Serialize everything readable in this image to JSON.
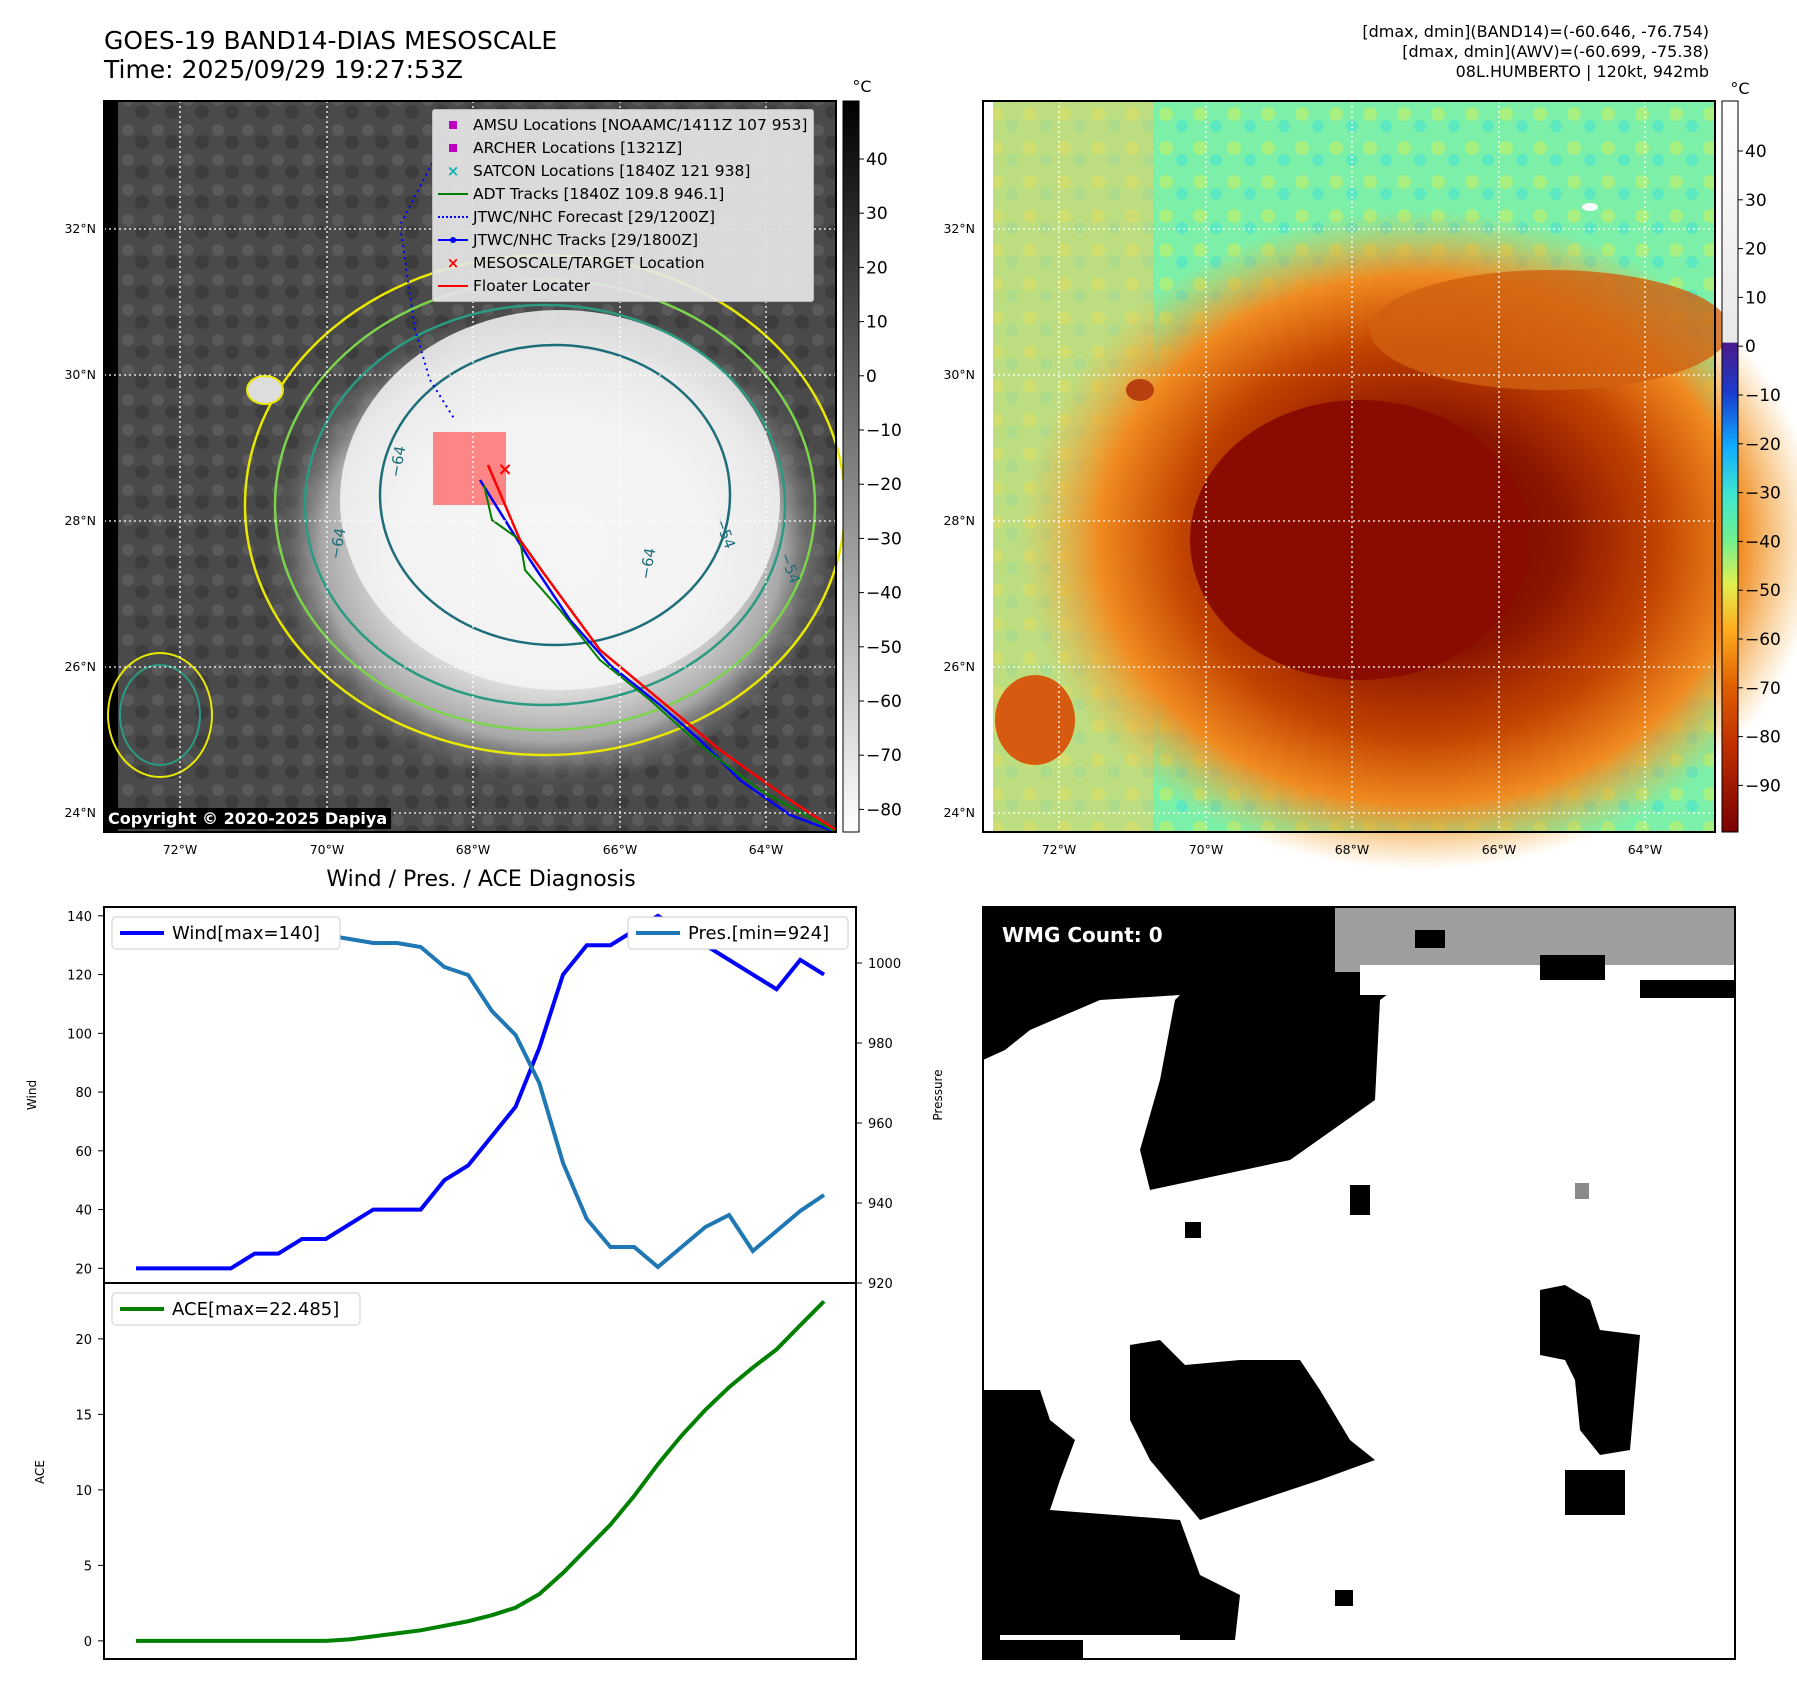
{
  "header": {
    "title_line1": "GOES-19 BAND14-DIAS MESOSCALE",
    "title_line2": "Time: 2025/09/29 19:27:53Z",
    "info_line1": "[dmax, dmin](BAND14)=(-60.646, -76.754)",
    "info_line2": "[dmax, dmin](AWV)=(-60.699, -75.38)",
    "info_line3": "08L.HUMBERTO | 120kt, 942mb"
  },
  "map_axes": {
    "lat_ticks": [
      "32°N",
      "30°N",
      "28°N",
      "26°N",
      "24°N"
    ],
    "lon_ticks": [
      "72°W",
      "70°W",
      "68°W",
      "66°W",
      "64°W"
    ]
  },
  "ir_panel": {
    "colorbar_unit": "°C",
    "colorbar_ticks": [
      "40",
      "30",
      "20",
      "10",
      "0",
      "−10",
      "−20",
      "−30",
      "−40",
      "−50",
      "−60",
      "−70",
      "−80"
    ],
    "contour_labels": [
      "−64",
      "−64",
      "−54",
      "−64",
      "−64",
      "−54"
    ],
    "copyright": "Copyright © 2020-2025 Dapiya",
    "legend": [
      {
        "label": "AMSU Locations [NOAAMC/1411Z 107 953]",
        "symbol": "square",
        "color": "#c000c0"
      },
      {
        "label": "ARCHER Locations [1321Z]",
        "symbol": "square",
        "color": "#c000c0"
      },
      {
        "label": "SATCON Locations [1840Z 121 938]",
        "symbol": "x",
        "color": "#10b0b0"
      },
      {
        "label": "ADT Tracks [1840Z 109.8 946.1]",
        "symbol": "line",
        "color": "#008000"
      },
      {
        "label": "JTWC/NHC Forecast [29/1200Z]",
        "symbol": "dotted",
        "color": "#0000ff"
      },
      {
        "label": "JTWC/NHC Tracks [29/1800Z]",
        "symbol": "line-dot",
        "color": "#0000ff"
      },
      {
        "label": "MESOSCALE/TARGET Location",
        "symbol": "x",
        "color": "#ff0000"
      },
      {
        "label": "Floater Locater",
        "symbol": "line",
        "color": "#ff0000"
      }
    ]
  },
  "color_panel": {
    "colorbar_unit": "°C",
    "colorbar_ticks": [
      "40",
      "30",
      "20",
      "10",
      "0",
      "−10",
      "−20",
      "−30",
      "−40",
      "−50",
      "−60",
      "−70",
      "−80",
      "−90"
    ]
  },
  "wmg_panel": {
    "label": "WMG Count: 0"
  },
  "chart_data": [
    {
      "type": "line",
      "title": "Wind / Pres. / ACE Diagnosis",
      "ylabel": "Wind",
      "y2label": "Pressure",
      "ylim": [
        15,
        143
      ],
      "y2lim": [
        920,
        1014
      ],
      "yticks": [
        20,
        40,
        60,
        80,
        100,
        120,
        140
      ],
      "y2ticks": [
        920,
        940,
        960,
        980,
        1000
      ],
      "legend_placement": "top-left / top-right",
      "series": [
        {
          "name": "Wind[max=140]",
          "color": "#0000ff",
          "axis": "left",
          "values": [
            20,
            20,
            20,
            20,
            20,
            25,
            25,
            30,
            30,
            35,
            40,
            40,
            40,
            50,
            55,
            65,
            75,
            95,
            120,
            130,
            130,
            135,
            140,
            135,
            130,
            125,
            120,
            115,
            125,
            120
          ]
        },
        {
          "name": "Pres.[min=924]",
          "color": "#1f77b4",
          "axis": "right",
          "values": [
            1008,
            1008,
            1008,
            1008,
            1008,
            1007,
            1007,
            1007,
            1007,
            1006,
            1005,
            1005,
            1004,
            999,
            997,
            988,
            982,
            970,
            950,
            936,
            929,
            929,
            924,
            929,
            934,
            937,
            928,
            933,
            938,
            942
          ]
        }
      ]
    },
    {
      "type": "line",
      "ylabel": "ACE",
      "ylim": [
        -1.2,
        23.7
      ],
      "yticks": [
        0,
        5,
        10,
        15,
        20
      ],
      "legend_placement": "top-left",
      "series": [
        {
          "name": "ACE[max=22.485]",
          "color": "#008000",
          "values": [
            0,
            0,
            0,
            0,
            0,
            0,
            0,
            0,
            0,
            0.1,
            0.3,
            0.5,
            0.7,
            1.0,
            1.3,
            1.7,
            2.2,
            3.1,
            4.5,
            6.1,
            7.7,
            9.6,
            11.7,
            13.6,
            15.3,
            16.8,
            18.1,
            19.3,
            20.9,
            22.485
          ]
        }
      ]
    }
  ]
}
